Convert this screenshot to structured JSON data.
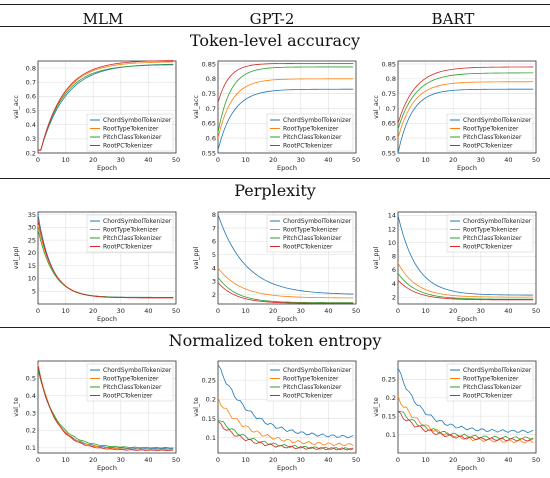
{
  "columns": [
    "MLM",
    "GPT-2",
    "BART"
  ],
  "sections": [
    "Token-level accuracy",
    "Perplexity",
    "Normalized token entropy"
  ],
  "legend": [
    "ChordSymbolTokenizer",
    "RootTypeTokenizer",
    "PitchClassTokenizer",
    "RootPCTokenizer"
  ],
  "colors": {
    "ChordSymbolTokenizer": "#1f77b4",
    "RootTypeTokenizer": "#ff7f0e",
    "PitchClassTokenizer": "#2ca02c",
    "RootPCTokenizer": "#d62728"
  },
  "chart_data": [
    {
      "type": "line",
      "row": "Token-level accuracy",
      "col": "MLM",
      "xlabel": "Epoch",
      "ylabel": "val_acc",
      "xlim": [
        0,
        50
      ],
      "ylim": [
        0.2,
        0.85
      ],
      "xticks": [
        0,
        10,
        20,
        30,
        40,
        50
      ],
      "yticks": [
        0.2,
        0.3,
        0.4,
        0.5,
        0.6,
        0.7,
        0.8
      ],
      "grid": true,
      "legend_position": "lower-right",
      "series": [
        {
          "name": "ChordSymbolTokenizer",
          "curve": {
            "kind": "rise",
            "start": 0.22,
            "end": 0.83,
            "k": 0.11,
            "lag": 1
          }
        },
        {
          "name": "RootTypeTokenizer",
          "curve": {
            "kind": "rise",
            "start": 0.22,
            "end": 0.845,
            "k": 0.12,
            "lag": 1
          }
        },
        {
          "name": "PitchClassTokenizer",
          "curve": {
            "kind": "rise",
            "start": 0.22,
            "end": 0.825,
            "k": 0.12,
            "lag": 1
          }
        },
        {
          "name": "RootPCTokenizer",
          "curve": {
            "kind": "rise",
            "start": 0.22,
            "end": 0.855,
            "k": 0.12,
            "lag": 1
          }
        }
      ]
    },
    {
      "type": "line",
      "row": "Token-level accuracy",
      "col": "GPT-2",
      "xlabel": "Epoch",
      "ylabel": "val_acc",
      "xlim": [
        0,
        50
      ],
      "ylim": [
        0.55,
        0.86
      ],
      "xticks": [
        0,
        10,
        20,
        30,
        40,
        50
      ],
      "yticks": [
        0.55,
        0.6,
        0.65,
        0.7,
        0.75,
        0.8,
        0.85
      ],
      "grid": true,
      "legend_position": "lower-right",
      "series": [
        {
          "name": "ChordSymbolTokenizer",
          "curve": {
            "kind": "rise",
            "start": 0.56,
            "end": 0.765,
            "k": 0.18
          }
        },
        {
          "name": "RootTypeTokenizer",
          "curve": {
            "kind": "rise",
            "start": 0.6,
            "end": 0.8,
            "k": 0.2
          }
        },
        {
          "name": "PitchClassTokenizer",
          "curve": {
            "kind": "rise",
            "start": 0.62,
            "end": 0.84,
            "k": 0.22
          }
        },
        {
          "name": "RootPCTokenizer",
          "curve": {
            "kind": "rise",
            "start": 0.72,
            "end": 0.852,
            "k": 0.25
          }
        }
      ]
    },
    {
      "type": "line",
      "row": "Token-level accuracy",
      "col": "BART",
      "xlabel": "Epoch",
      "ylabel": "val_acc",
      "xlim": [
        0,
        50
      ],
      "ylim": [
        0.55,
        0.86
      ],
      "xticks": [
        0,
        10,
        20,
        30,
        40,
        50
      ],
      "yticks": [
        0.55,
        0.6,
        0.65,
        0.7,
        0.75,
        0.8,
        0.85
      ],
      "grid": true,
      "legend_position": "lower-right",
      "series": [
        {
          "name": "ChordSymbolTokenizer",
          "curve": {
            "kind": "rise",
            "start": 0.55,
            "end": 0.765,
            "k": 0.2
          }
        },
        {
          "name": "RootTypeTokenizer",
          "curve": {
            "kind": "rise",
            "start": 0.6,
            "end": 0.79,
            "k": 0.18
          }
        },
        {
          "name": "PitchClassTokenizer",
          "curve": {
            "kind": "rise",
            "start": 0.63,
            "end": 0.82,
            "k": 0.16
          }
        },
        {
          "name": "RootPCTokenizer",
          "curve": {
            "kind": "rise",
            "start": 0.65,
            "end": 0.84,
            "k": 0.16
          }
        }
      ]
    },
    {
      "type": "line",
      "row": "Perplexity",
      "col": "MLM",
      "xlabel": "Epoch",
      "ylabel": "val_ppl",
      "xlim": [
        0,
        50
      ],
      "ylim": [
        0,
        36
      ],
      "xticks": [
        0,
        10,
        20,
        30,
        40,
        50
      ],
      "yticks": [
        5,
        10,
        15,
        20,
        25,
        30,
        35
      ],
      "grid": true,
      "legend_position": "upper-right",
      "series": [
        {
          "name": "ChordSymbolTokenizer",
          "curve": {
            "kind": "decay",
            "start": 35,
            "end": 2.6,
            "k": 0.2
          }
        },
        {
          "name": "RootTypeTokenizer",
          "curve": {
            "kind": "decay",
            "start": 31,
            "end": 2.4,
            "k": 0.18
          }
        },
        {
          "name": "PitchClassTokenizer",
          "curve": {
            "kind": "decay",
            "start": 29,
            "end": 2.5,
            "k": 0.18
          }
        },
        {
          "name": "RootPCTokenizer",
          "curve": {
            "kind": "decay",
            "start": 33,
            "end": 2.4,
            "k": 0.19
          }
        }
      ]
    },
    {
      "type": "line",
      "row": "Perplexity",
      "col": "GPT-2",
      "xlabel": "Epoch",
      "ylabel": "val_ppl",
      "xlim": [
        0,
        50
      ],
      "ylim": [
        1.3,
        8.2
      ],
      "xticks": [
        0,
        10,
        20,
        30,
        40,
        50
      ],
      "yticks": [
        2,
        3,
        4,
        5,
        6,
        7,
        8
      ],
      "grid": true,
      "legend_position": "upper-right",
      "series": [
        {
          "name": "ChordSymbolTokenizer",
          "curve": {
            "kind": "decay",
            "start": 8.0,
            "end": 2.0,
            "k": 0.1
          }
        },
        {
          "name": "RootTypeTokenizer",
          "curve": {
            "kind": "decay",
            "start": 4.0,
            "end": 1.75,
            "k": 0.12
          }
        },
        {
          "name": "PitchClassTokenizer",
          "curve": {
            "kind": "decay",
            "start": 3.3,
            "end": 1.4,
            "k": 0.15
          }
        },
        {
          "name": "RootPCTokenizer",
          "curve": {
            "kind": "decay",
            "start": 2.9,
            "end": 1.35,
            "k": 0.15
          }
        }
      ]
    },
    {
      "type": "line",
      "row": "Perplexity",
      "col": "BART",
      "xlabel": "Epoch",
      "ylabel": "val_ppl",
      "xlim": [
        0,
        50
      ],
      "ylim": [
        1,
        14.5
      ],
      "xticks": [
        0,
        10,
        20,
        30,
        40,
        50
      ],
      "yticks": [
        2,
        4,
        6,
        8,
        10,
        12,
        14
      ],
      "grid": true,
      "legend_position": "upper-right",
      "series": [
        {
          "name": "ChordSymbolTokenizer",
          "curve": {
            "kind": "decay",
            "start": 14,
            "end": 2.3,
            "k": 0.15
          }
        },
        {
          "name": "RootTypeTokenizer",
          "curve": {
            "kind": "decay",
            "start": 7,
            "end": 2.0,
            "k": 0.15
          }
        },
        {
          "name": "PitchClassTokenizer",
          "curve": {
            "kind": "decay",
            "start": 5.5,
            "end": 1.7,
            "k": 0.15
          }
        },
        {
          "name": "RootPCTokenizer",
          "curve": {
            "kind": "decay",
            "start": 4.5,
            "end": 1.6,
            "k": 0.15
          }
        }
      ]
    },
    {
      "type": "line",
      "row": "Normalized token entropy",
      "col": "MLM",
      "xlabel": "Epoch",
      "ylabel": "val_te",
      "xlim": [
        0,
        50
      ],
      "ylim": [
        0.07,
        0.6
      ],
      "xticks": [
        0,
        10,
        20,
        30,
        40,
        50
      ],
      "yticks": [
        0.1,
        0.2,
        0.3,
        0.4,
        0.5
      ],
      "grid": true,
      "legend_position": "upper-right",
      "series": [
        {
          "name": "ChordSymbolTokenizer",
          "curve": {
            "kind": "decay",
            "start": 0.56,
            "end": 0.095,
            "k": 0.16,
            "noise": 0.003
          }
        },
        {
          "name": "RootTypeTokenizer",
          "curve": {
            "kind": "decay",
            "start": 0.58,
            "end": 0.09,
            "k": 0.16,
            "noise": 0.003
          }
        },
        {
          "name": "PitchClassTokenizer",
          "curve": {
            "kind": "decay",
            "start": 0.55,
            "end": 0.1,
            "k": 0.15,
            "noise": 0.003
          }
        },
        {
          "name": "RootPCTokenizer",
          "curve": {
            "kind": "decay",
            "start": 0.57,
            "end": 0.085,
            "k": 0.16,
            "noise": 0.003
          }
        }
      ]
    },
    {
      "type": "line",
      "row": "Normalized token entropy",
      "col": "GPT-2",
      "xlabel": "Epoch",
      "ylabel": "val_te",
      "xlim": [
        0,
        50
      ],
      "ylim": [
        0.06,
        0.3
      ],
      "xticks": [
        0,
        10,
        20,
        30,
        40,
        50
      ],
      "yticks": [
        0.1,
        0.15,
        0.2,
        0.25
      ],
      "grid": true,
      "legend_position": "upper-right",
      "series": [
        {
          "name": "ChordSymbolTokenizer",
          "curve": {
            "kind": "decay",
            "start": 0.29,
            "end": 0.1,
            "k": 0.09,
            "noise": 0.006
          }
        },
        {
          "name": "RootTypeTokenizer",
          "curve": {
            "kind": "decay",
            "start": 0.2,
            "end": 0.08,
            "k": 0.09,
            "noise": 0.006
          }
        },
        {
          "name": "PitchClassTokenizer",
          "curve": {
            "kind": "decay",
            "start": 0.15,
            "end": 0.07,
            "k": 0.09,
            "noise": 0.005
          }
        },
        {
          "name": "RootPCTokenizer",
          "curve": {
            "kind": "decay",
            "start": 0.14,
            "end": 0.07,
            "k": 0.1,
            "noise": 0.005
          }
        }
      ]
    },
    {
      "type": "line",
      "row": "Normalized token entropy",
      "col": "BART",
      "xlabel": "Epoch",
      "ylabel": "val_te",
      "xlim": [
        0,
        50
      ],
      "ylim": [
        0.05,
        0.3
      ],
      "xticks": [
        0,
        10,
        20,
        30,
        40,
        50
      ],
      "yticks": [
        0.1,
        0.15,
        0.2,
        0.25
      ],
      "grid": true,
      "legend_position": "upper-right",
      "series": [
        {
          "name": "ChordSymbolTokenizer",
          "curve": {
            "kind": "decay",
            "start": 0.28,
            "end": 0.108,
            "k": 0.12,
            "noise": 0.006
          }
        },
        {
          "name": "RootTypeTokenizer",
          "curve": {
            "kind": "decay",
            "start": 0.2,
            "end": 0.08,
            "k": 0.1,
            "noise": 0.007
          }
        },
        {
          "name": "PitchClassTokenizer",
          "curve": {
            "kind": "decay",
            "start": 0.17,
            "end": 0.09,
            "k": 0.1,
            "noise": 0.006
          }
        },
        {
          "name": "RootPCTokenizer",
          "curve": {
            "kind": "decay",
            "start": 0.16,
            "end": 0.085,
            "k": 0.1,
            "noise": 0.006
          }
        }
      ]
    }
  ]
}
